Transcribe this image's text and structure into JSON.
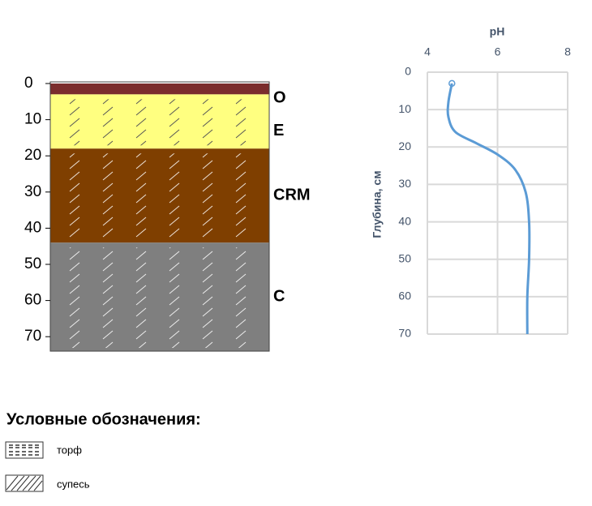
{
  "chart_data": [
    {
      "type": "soil_profile",
      "ylim": [
        0,
        74
      ],
      "yticks": [
        0,
        10,
        20,
        30,
        40,
        50,
        60,
        70
      ],
      "layers": [
        {
          "name": "O",
          "top": 0,
          "bottom": 3,
          "color": "#7b2d2d"
        },
        {
          "name": "E",
          "top": 3,
          "bottom": 18,
          "color": "#ffff80"
        },
        {
          "name": "CRM",
          "top": 18,
          "bottom": 44,
          "color": "#7f3f00"
        },
        {
          "name": "C",
          "top": 44,
          "bottom": 74,
          "color": "#7f7f7f"
        }
      ]
    },
    {
      "type": "line",
      "x_label": "pH",
      "y_label": "Глубина, см",
      "xlim": [
        4,
        8
      ],
      "xticks": [
        4,
        6,
        8
      ],
      "ylim": [
        0,
        70
      ],
      "yticks": [
        0,
        10,
        20,
        30,
        40,
        50,
        60,
        70
      ],
      "grid": true,
      "x": [
        4.7,
        4.6,
        4.6,
        4.8,
        5.4,
        6.0,
        6.5,
        6.8,
        6.9,
        6.9,
        6.85,
        6.85
      ],
      "series": [
        {
          "color": "#5b9bd5",
          "values": [
            3,
            8,
            12,
            16,
            19,
            22,
            26,
            32,
            40,
            50,
            60,
            70
          ]
        }
      ]
    }
  ],
  "legend": {
    "title": "Условные обозначения:",
    "items": [
      "торф",
      "супесь"
    ]
  }
}
